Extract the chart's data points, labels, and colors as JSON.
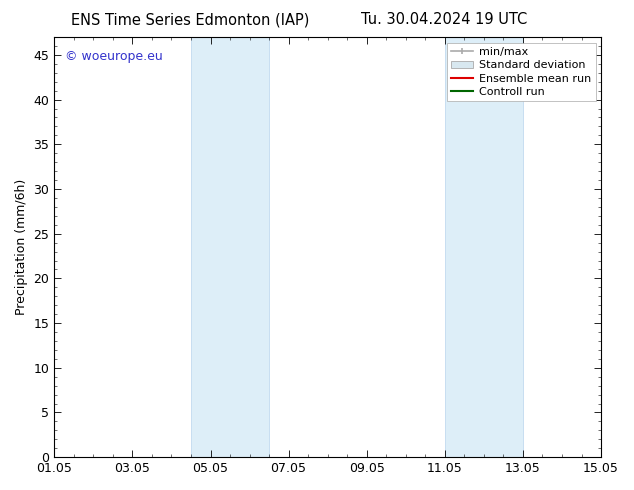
{
  "title_left": "ENS Time Series Edmonton (IAP)",
  "title_right": "Tu. 30.04.2024 19 UTC",
  "ylabel": "Precipitation (mm/6h)",
  "xlabel_ticks": [
    "01.05",
    "03.05",
    "05.05",
    "07.05",
    "09.05",
    "11.05",
    "13.05",
    "15.05"
  ],
  "x_tick_positions": [
    0,
    2,
    4,
    6,
    8,
    10,
    12,
    14
  ],
  "xlim": [
    0,
    14
  ],
  "ylim": [
    0,
    47
  ],
  "yticks": [
    0,
    5,
    10,
    15,
    20,
    25,
    30,
    35,
    40,
    45
  ],
  "background_color": "#ffffff",
  "plot_bg_color": "#ffffff",
  "shaded_band_color": "#ddeef8",
  "shaded_border_color": "#b8d4ee",
  "watermark_text": "© woeurope.eu",
  "watermark_color": "#3333cc",
  "legend_entries": [
    "min/max",
    "Standard deviation",
    "Ensemble mean run",
    "Controll run"
  ],
  "legend_line_colors": [
    "#aaaaaa",
    "#cccccc",
    "#dd0000",
    "#006600"
  ],
  "shaded_regions": [
    {
      "x_start": 3.5,
      "x_end": 5.5
    },
    {
      "x_start": 10.0,
      "x_end": 12.0
    }
  ],
  "title_fontsize": 10.5,
  "axis_fontsize": 9,
  "legend_fontsize": 8,
  "watermark_fontsize": 9
}
